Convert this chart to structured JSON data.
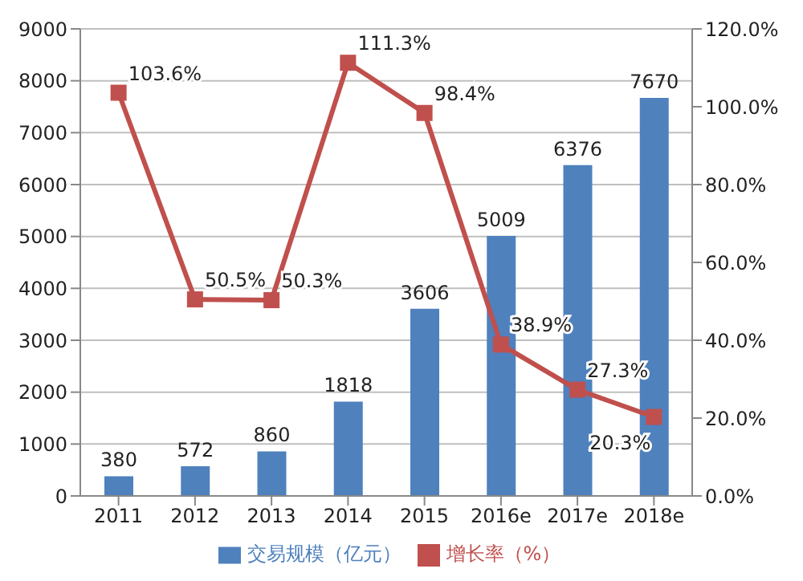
{
  "chart_data": {
    "type": "bar",
    "categories": [
      "2011",
      "2012",
      "2013",
      "2014",
      "2015",
      "2016e",
      "2017e",
      "2018e"
    ],
    "series": [
      {
        "name": "交易规模（亿元）",
        "color": "#4f81bd",
        "values": [
          380,
          572,
          860,
          1818,
          3606,
          5009,
          6376,
          7670
        ],
        "value_labels": [
          "380",
          "572",
          "860",
          "1818",
          "3606",
          "5009",
          "6376",
          "7670"
        ]
      },
      {
        "name": "增长率（%）",
        "type": "line",
        "axis": "y2",
        "color": "#c0504d",
        "values": [
          103.6,
          50.5,
          50.3,
          111.3,
          98.4,
          38.9,
          27.3,
          20.3
        ],
        "value_labels": [
          "103.6%",
          "50.5%",
          "50.3%",
          "111.3%",
          "98.4%",
          "38.9%",
          "27.3%",
          "20.3%"
        ]
      }
    ],
    "ylim": [
      0,
      9000
    ],
    "yticks": [
      0,
      1000,
      2000,
      3000,
      4000,
      5000,
      6000,
      7000,
      8000,
      9000
    ],
    "y2lim": [
      0,
      120
    ],
    "y2ticks": [
      {
        "value": 0,
        "label": "0.0%"
      },
      {
        "value": 20,
        "label": "20.0%"
      },
      {
        "value": 40,
        "label": "40.0%"
      },
      {
        "value": 60,
        "label": "60.0%"
      },
      {
        "value": 80,
        "label": "80.0%"
      },
      {
        "value": 100,
        "label": "100.0%"
      },
      {
        "value": 120,
        "label": "120.0%"
      }
    ],
    "grid": "y",
    "legend": "bottom",
    "marker": "square"
  }
}
